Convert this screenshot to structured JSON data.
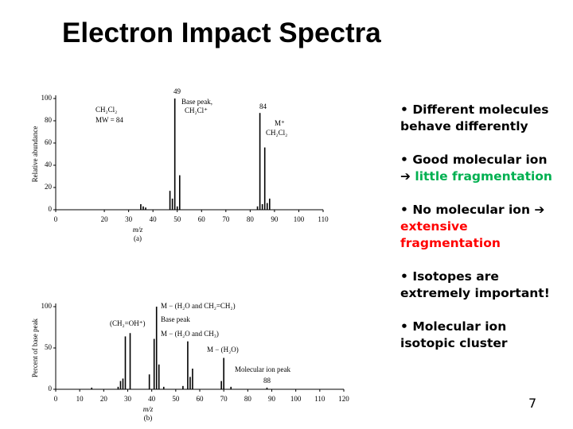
{
  "title": "Electron Impact Spectra",
  "bullets": [
    {
      "text": "Different molecules behave differently"
    },
    {
      "text": "Good molecular ion",
      "highlight": "little fragmentation",
      "highlight_color": "#00b050"
    },
    {
      "text": "No molecular ion",
      "highlight": "extensive fragmentation",
      "highlight_color": "#ff0000"
    },
    {
      "text": "Isotopes are extremely important!"
    },
    {
      "text": "Molecular ion isotopic cluster"
    }
  ],
  "page_number": "7",
  "chart_data": [
    {
      "type": "bar",
      "xlabel": "m/z",
      "ylabel": "Relative abundance",
      "panel": "(a)",
      "xlim": [
        0,
        110
      ],
      "xticks": [
        0,
        20,
        30,
        40,
        50,
        60,
        70,
        80,
        90,
        100,
        110
      ],
      "ylim": [
        0,
        100
      ],
      "yticks": [
        0,
        20,
        40,
        60,
        80,
        100
      ],
      "color": "#000000",
      "x": [
        35,
        36,
        37,
        47,
        48,
        49,
        50,
        51,
        83,
        84,
        85,
        86,
        87,
        88
      ],
      "values": [
        5,
        3,
        2,
        17,
        10,
        100,
        3,
        31,
        3,
        87,
        5,
        56,
        6,
        10
      ],
      "annotations": [
        "CH₂Cl₂",
        "MW = 84",
        "49",
        "Base peak,",
        "CH₂Cl⁺",
        "84",
        "M⁺",
        "CH₂Cl₂"
      ]
    },
    {
      "type": "bar",
      "xlabel": "m/z",
      "ylabel": "Percent of base peak",
      "panel": "(b)",
      "xlim": [
        0,
        120
      ],
      "xticks": [
        0,
        10,
        20,
        30,
        40,
        50,
        60,
        70,
        80,
        90,
        100,
        110,
        120
      ],
      "ylim": [
        0,
        100
      ],
      "yticks": [
        0,
        50,
        100
      ],
      "color": "#000000",
      "x": [
        15,
        26,
        27,
        28,
        29,
        31,
        39,
        41,
        42,
        43,
        45,
        53,
        55,
        56,
        57,
        69,
        70,
        73,
        88
      ],
      "values": [
        2,
        3,
        10,
        13,
        64,
        68,
        18,
        61,
        100,
        30,
        3,
        4,
        58,
        15,
        25,
        10,
        38,
        3,
        2
      ],
      "annotations": [
        "M − (H₂O and CH₂=CH₂)",
        "Base peak",
        "M − (H₂O and CH₃)",
        "(CH₂=OH⁺)",
        "M − (H₂O)",
        "Molecular ion peak",
        "88"
      ]
    }
  ]
}
